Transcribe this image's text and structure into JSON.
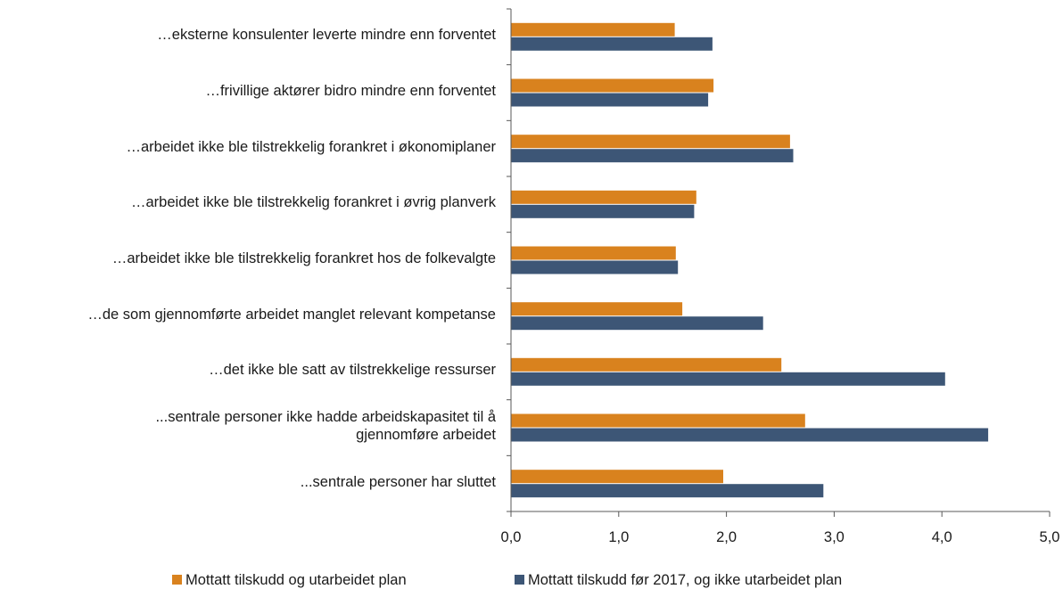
{
  "chart_data": {
    "type": "bar",
    "orientation": "horizontal",
    "categories": [
      "…eksterne konsulenter leverte mindre enn forventet",
      "…frivillige aktører bidro mindre enn forventet",
      "…arbeidet ikke ble tilstrekkelig forankret i økonomiplaner",
      "…arbeidet ikke ble tilstrekkelig forankret i øvrig planverk",
      "…arbeidet ikke ble tilstrekkelig forankret hos de folkevalgte",
      "…de som gjennomførte arbeidet manglet relevant kompetanse",
      "…det ikke ble satt av tilstrekkelige ressurser",
      "...sentrale personer ikke hadde arbeidskapasitet til å gjennomføre arbeidet",
      "...sentrale personer har sluttet"
    ],
    "series": [
      {
        "name": "Mottatt tilskudd og utarbeidet plan",
        "color": "#d9821e",
        "values": [
          1.52,
          1.88,
          2.59,
          1.72,
          1.53,
          1.59,
          2.51,
          2.73,
          1.97
        ]
      },
      {
        "name": "Mottatt tilskudd før 2017, og ikke utarbeidet plan",
        "color": "#3d5676",
        "values": [
          1.87,
          1.83,
          2.62,
          1.7,
          1.55,
          2.34,
          4.03,
          4.43,
          2.9
        ]
      }
    ],
    "xlim": [
      0,
      5
    ],
    "x_ticks": [
      "0,0",
      "1,0",
      "2,0",
      "3,0",
      "4,0",
      "5,0"
    ],
    "grid": false,
    "legend_position": "bottom"
  }
}
